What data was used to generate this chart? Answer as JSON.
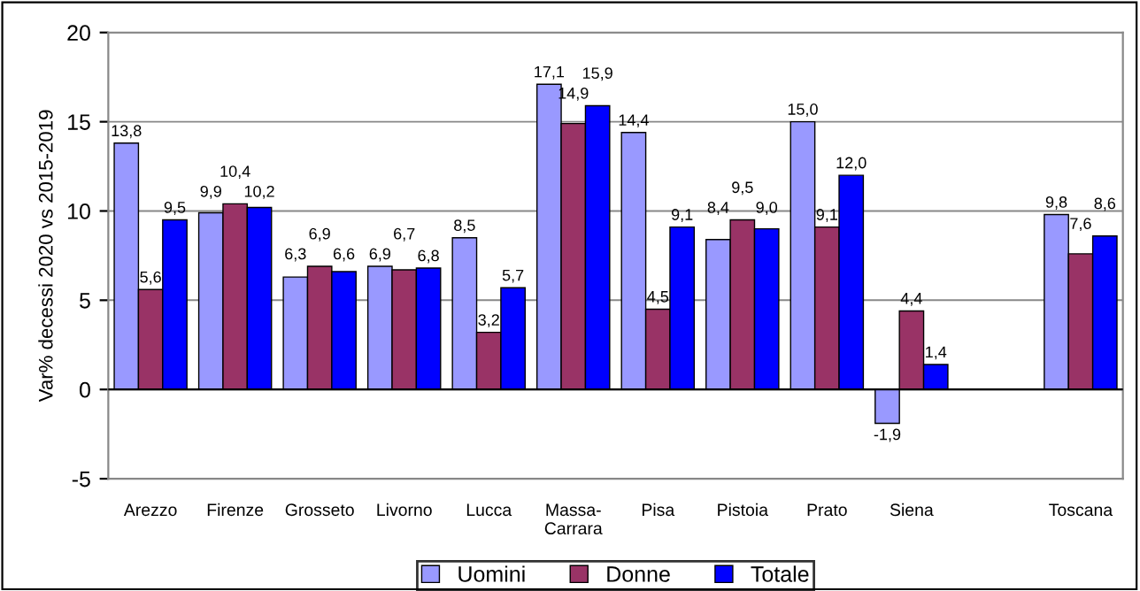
{
  "chart_data": {
    "type": "bar",
    "ylabel": "Var% decessi 2020 vs 2015-2019",
    "categories": [
      "Arezzo",
      "Firenze",
      "Grosseto",
      "Livorno",
      "Lucca",
      "Massa-\nCarrara",
      "Pisa",
      "Pistoia",
      "Prato",
      "Siena",
      null,
      "Toscana"
    ],
    "series": [
      {
        "name": "Uomini",
        "color": "#9999ff",
        "values": [
          13.8,
          9.9,
          6.3,
          6.9,
          8.5,
          17.1,
          14.4,
          8.4,
          15.0,
          -1.9,
          null,
          9.8
        ],
        "value_labels": [
          "13,8",
          "9,9",
          "6,3",
          "6,9",
          "8,5",
          "17,1",
          "14,4",
          "8,4",
          "15,0",
          "-1,9",
          null,
          "9,8"
        ]
      },
      {
        "name": "Donne",
        "color": "#993366",
        "values": [
          5.6,
          10.4,
          6.9,
          6.7,
          3.2,
          14.9,
          4.5,
          9.5,
          9.1,
          4.4,
          null,
          7.6
        ],
        "value_labels": [
          "5,6",
          "10,4",
          "6,9",
          "6,7",
          "3,2",
          "14,9",
          "4,5",
          "9,5",
          "9,1",
          "4,4",
          null,
          "7,6"
        ]
      },
      {
        "name": "Totale",
        "color": "#0000ff",
        "values": [
          9.5,
          10.2,
          6.6,
          6.8,
          5.7,
          15.9,
          9.1,
          9.0,
          12.0,
          1.4,
          null,
          8.6
        ],
        "value_labels": [
          "9,5",
          "10,2",
          "6,6",
          "6,8",
          "5,7",
          "15,9",
          "9,1",
          "9,0",
          "12,0",
          "1,4",
          null,
          "8,6"
        ]
      }
    ],
    "ylim": [
      -5,
      20
    ],
    "yticks": [
      -5,
      0,
      5,
      10,
      15,
      20
    ],
    "grid": "y",
    "legend": "bottom"
  }
}
